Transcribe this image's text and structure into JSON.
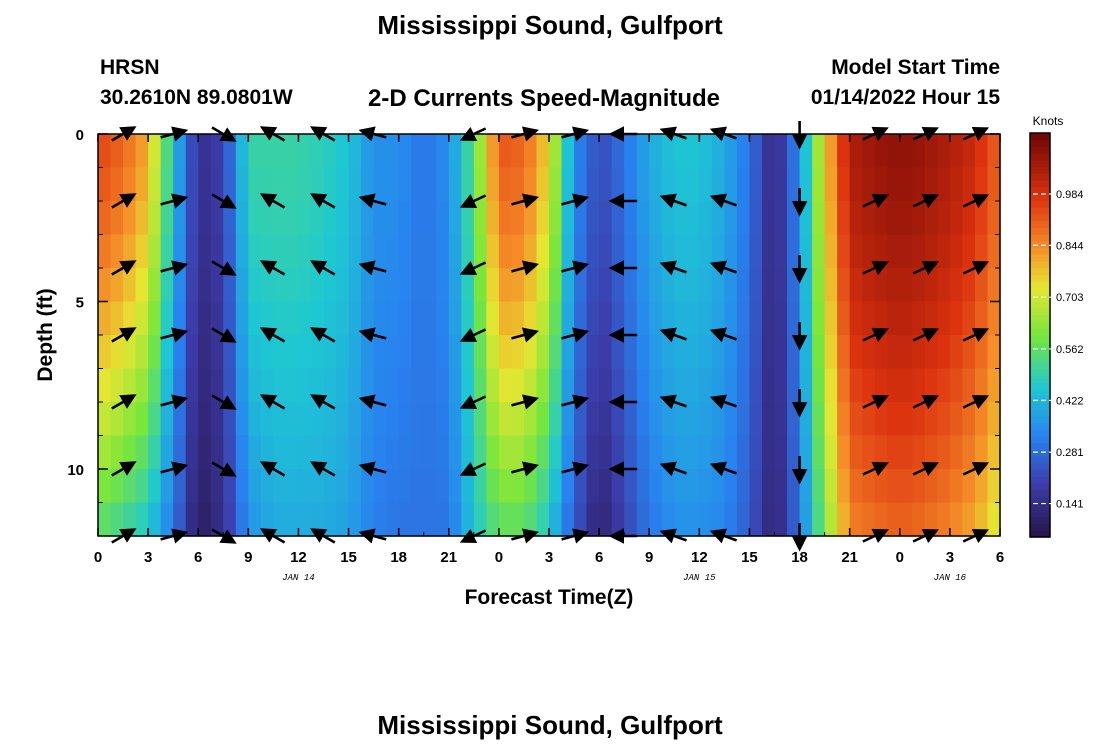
{
  "page": {
    "title": "Mississippi Sound, Gulfport",
    "station": "HRSN",
    "location": "30.2610N  89.0801W",
    "plot_title": "2-D Currents Speed-Magnitude",
    "model_start_label": "Model Start Time",
    "model_start_value": "01/14/2022 Hour 15",
    "second_title": "Mississippi Sound, Gulfport"
  },
  "chart_data": {
    "type": "heatmap",
    "xlabel": "Forecast Time(Z)",
    "ylabel": "Depth (ft)",
    "x_range_hours": [
      0,
      54
    ],
    "y_range_ft": [
      0,
      12
    ],
    "y_ticks": [
      0,
      5,
      10
    ],
    "x_ticks": [
      "0",
      "3",
      "6",
      "9",
      "12",
      "15",
      "18",
      "21",
      "0",
      "3",
      "6",
      "9",
      "12",
      "15",
      "18",
      "21",
      "0",
      "3",
      "6"
    ],
    "date_labels": [
      {
        "text": "JAN 14",
        "hour": 12
      },
      {
        "text": "JAN 15",
        "hour": 36
      },
      {
        "text": "JAN 16",
        "hour": 51
      }
    ],
    "colorbar": {
      "label": "Knots",
      "range": [
        0.05,
        1.15
      ],
      "ticks": [
        "0.984",
        "0.844",
        "0.703",
        "0.562",
        "0.422",
        "0.281",
        "0.141"
      ],
      "tick_values": [
        0.984,
        0.844,
        0.703,
        0.562,
        0.422,
        0.281,
        0.141
      ]
    },
    "hours": [
      0,
      1.5,
      3,
      4.5,
      6,
      7.5,
      9,
      10.5,
      12,
      13.5,
      15,
      16.5,
      18,
      19.5,
      21,
      22.5,
      24,
      25.5,
      27,
      28.5,
      30,
      31.5,
      33,
      34.5,
      36,
      37.5,
      39,
      40.5,
      42,
      43.5,
      45,
      46.5,
      48,
      49.5,
      51,
      52.5,
      54
    ],
    "surface_speed_knots": [
      0.95,
      0.9,
      0.8,
      0.45,
      0.15,
      0.2,
      0.5,
      0.5,
      0.5,
      0.48,
      0.45,
      0.35,
      0.35,
      0.3,
      0.35,
      0.55,
      0.92,
      0.9,
      0.75,
      0.35,
      0.22,
      0.3,
      0.4,
      0.45,
      0.45,
      0.4,
      0.3,
      0.12,
      0.35,
      0.75,
      1.05,
      1.08,
      1.1,
      1.08,
      1.05,
      1.0,
      0.9
    ],
    "bottom_speed_knots": [
      0.55,
      0.5,
      0.45,
      0.3,
      0.08,
      0.15,
      0.35,
      0.4,
      0.4,
      0.4,
      0.38,
      0.32,
      0.3,
      0.3,
      0.3,
      0.45,
      0.55,
      0.55,
      0.45,
      0.25,
      0.1,
      0.2,
      0.3,
      0.35,
      0.35,
      0.33,
      0.25,
      0.1,
      0.3,
      0.6,
      0.85,
      0.88,
      0.9,
      0.88,
      0.85,
      0.8,
      0.7
    ],
    "vectors": {
      "hours": [
        1.5,
        4.5,
        7.5,
        10.5,
        13.5,
        16.5,
        22.5,
        25.5,
        28.5,
        31.5,
        34.5,
        37.5,
        42,
        46.5,
        49.5,
        52.5
      ],
      "depths": [
        0,
        2,
        4,
        6,
        8,
        10,
        12
      ],
      "direction_deg": [
        60,
        75,
        120,
        300,
        300,
        285,
        245,
        75,
        75,
        270,
        290,
        290,
        180,
        65,
        65,
        65
      ]
    }
  }
}
